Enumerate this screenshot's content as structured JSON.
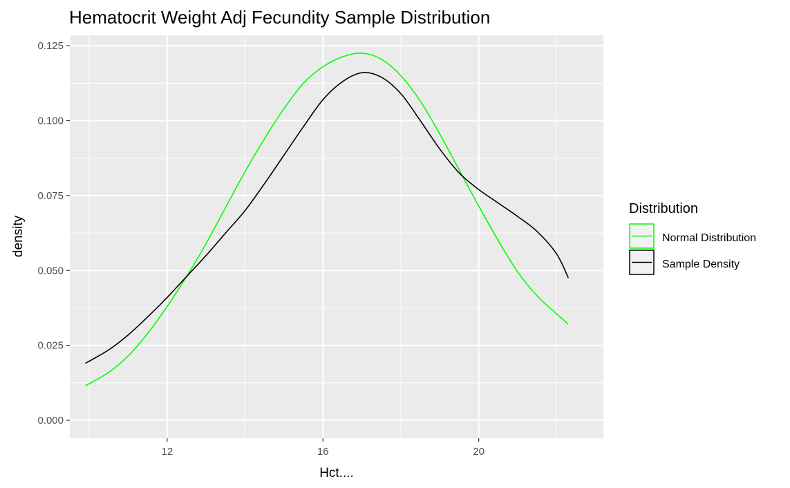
{
  "chart_data": {
    "type": "line",
    "title": "Hematocrit Weight Adj Fecundity Sample Distribution",
    "xlabel": "Hct....",
    "ylabel": "density",
    "xlim": [
      9.5,
      23.2
    ],
    "ylim": [
      -0.006,
      0.1285
    ],
    "x_ticks": [
      12,
      16,
      20
    ],
    "x_tick_labels": [
      "12",
      "16",
      "20"
    ],
    "y_ticks": [
      0,
      0.025,
      0.05,
      0.075,
      0.1,
      0.125
    ],
    "y_tick_labels": [
      "0.000",
      "0.025",
      "0.050",
      "0.075",
      "0.100",
      "0.125"
    ],
    "grid": true,
    "legend": {
      "title": "Distribution",
      "position": "right",
      "entries": [
        "Normal Distribution",
        "Sample Density"
      ]
    },
    "series": [
      {
        "name": "Normal Distribution",
        "color": "#00ff00",
        "x": [
          9.9,
          10.5,
          11.0,
          11.5,
          12.0,
          12.5,
          13.0,
          13.5,
          14.0,
          14.5,
          15.0,
          15.5,
          16.0,
          16.5,
          17.0,
          17.5,
          18.0,
          18.5,
          19.0,
          19.5,
          20.0,
          20.5,
          21.0,
          21.5,
          22.0,
          22.3
        ],
        "y": [
          0.0115,
          0.016,
          0.0215,
          0.029,
          0.038,
          0.048,
          0.059,
          0.071,
          0.083,
          0.094,
          0.104,
          0.1125,
          0.118,
          0.1213,
          0.1225,
          0.1205,
          0.115,
          0.1065,
          0.0955,
          0.0835,
          0.0715,
          0.06,
          0.0495,
          0.0415,
          0.0355,
          0.032
        ]
      },
      {
        "name": "Sample Density",
        "color": "#000000",
        "x": [
          9.9,
          10.5,
          11.0,
          11.5,
          12.0,
          12.5,
          13.0,
          13.5,
          14.0,
          14.5,
          15.0,
          15.5,
          16.0,
          16.5,
          17.0,
          17.5,
          18.0,
          18.5,
          19.0,
          19.5,
          20.0,
          20.5,
          21.0,
          21.5,
          22.0,
          22.3
        ],
        "y": [
          0.019,
          0.0235,
          0.0285,
          0.0345,
          0.041,
          0.048,
          0.055,
          0.0625,
          0.07,
          0.079,
          0.0885,
          0.098,
          0.107,
          0.113,
          0.116,
          0.1145,
          0.109,
          0.1,
          0.0905,
          0.0825,
          0.077,
          0.0725,
          0.068,
          0.063,
          0.0555,
          0.0475
        ]
      }
    ]
  }
}
